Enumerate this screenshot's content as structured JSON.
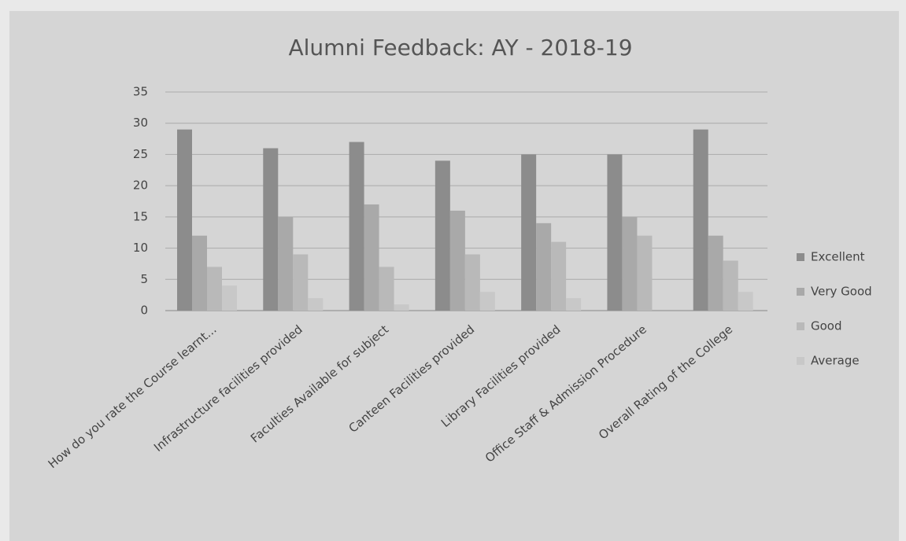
{
  "chart_data": {
    "type": "bar",
    "title": "Alumni Feedback: AY - 2018-19",
    "categories": [
      "How do you rate the Course learnt...",
      "Infrastructure facilities provided",
      "Faculties Available for subject",
      "Canteen Facilities provided",
      "Library Facilities provided",
      "Office Staff & Admission Procedure",
      "Overall Rating of the College"
    ],
    "series": [
      {
        "name": "Excellent",
        "color": "#8c8c8c",
        "values": [
          29,
          26,
          27,
          24,
          25,
          25,
          29
        ]
      },
      {
        "name": "Very Good",
        "color": "#a9a9a9",
        "values": [
          12,
          15,
          17,
          16,
          14,
          15,
          12
        ]
      },
      {
        "name": "Good",
        "color": "#b9b9b9",
        "values": [
          7,
          9,
          7,
          9,
          11,
          12,
          8
        ]
      },
      {
        "name": "Average",
        "color": "#c8c8c8",
        "values": [
          4,
          2,
          1,
          3,
          2,
          0,
          3
        ]
      }
    ],
    "ylim": [
      0,
      35
    ],
    "yticks": [
      0,
      5,
      10,
      15,
      20,
      25,
      30,
      35
    ],
    "grid": true,
    "legend": "right"
  }
}
